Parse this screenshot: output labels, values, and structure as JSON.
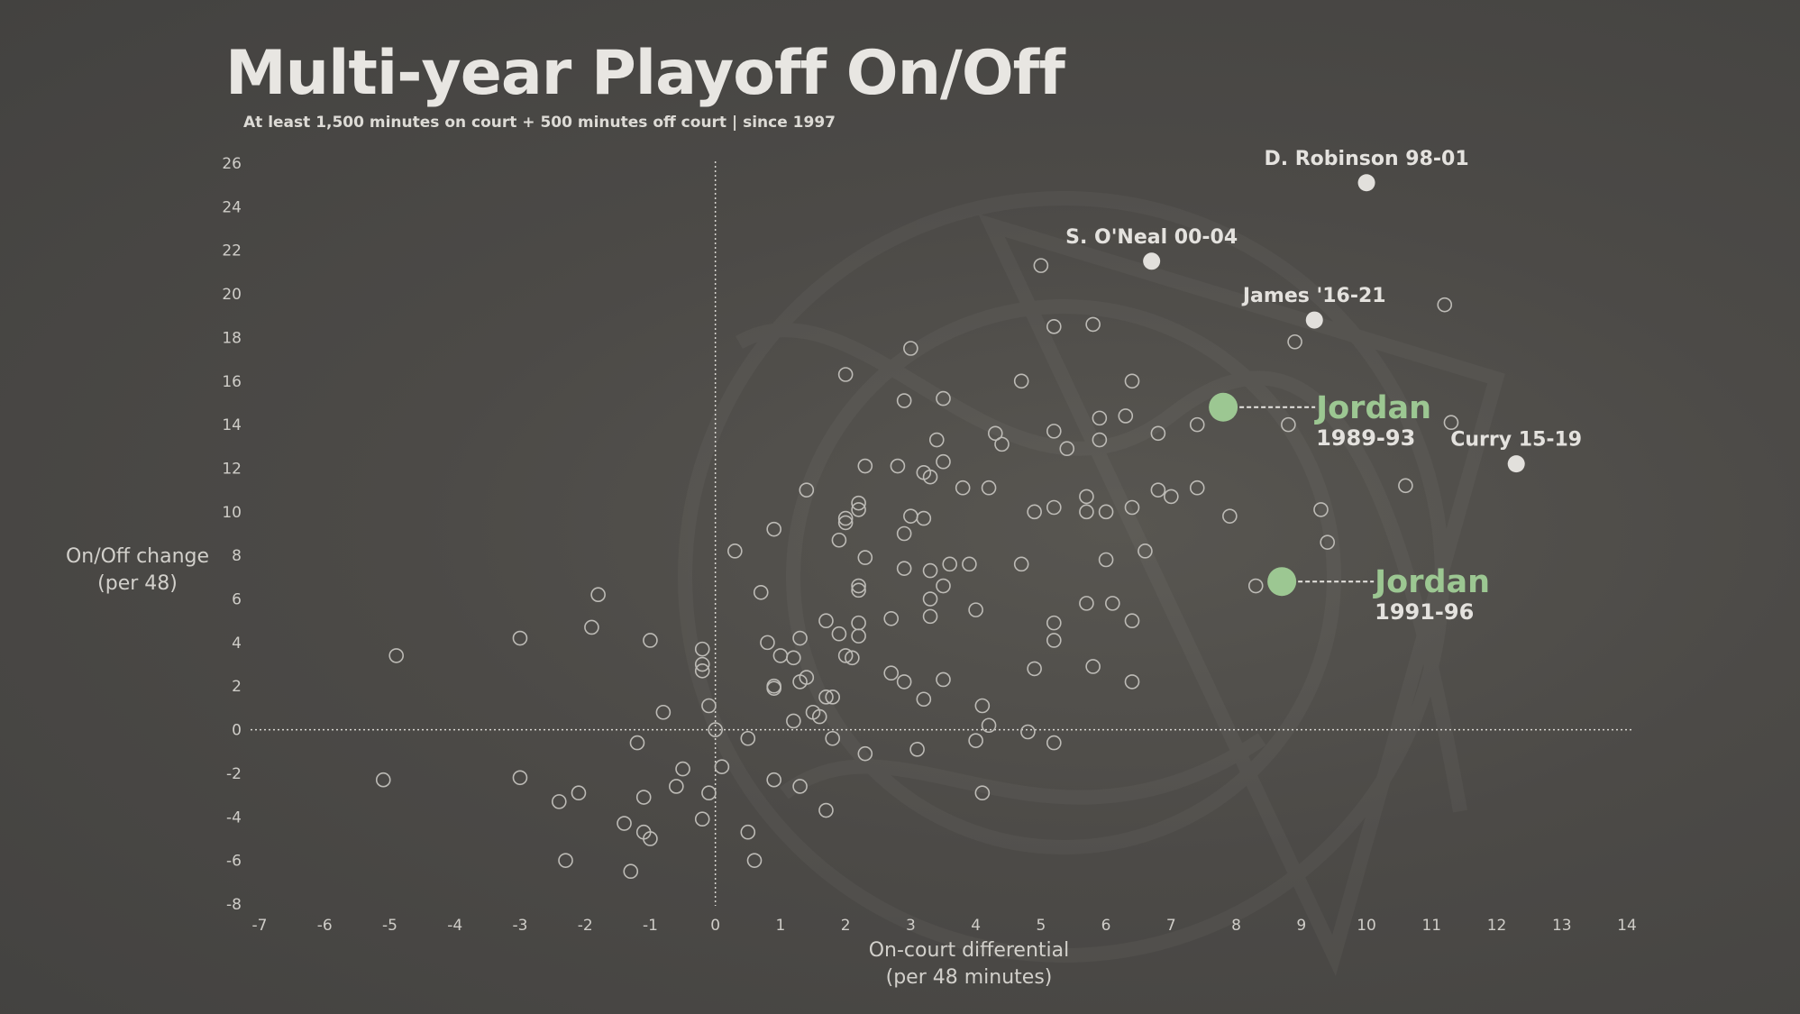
{
  "chart_data": {
    "type": "scatter",
    "title": "Multi-year Playoff On/Off",
    "subtitle": "At least 1,500 minutes on court + 500 minutes off court | since 1997",
    "xlabel": [
      "On-court differential",
      "(per 48 minutes)"
    ],
    "ylabel": [
      "On/Off change",
      "(per 48)"
    ],
    "xlim": [
      -7,
      14
    ],
    "ylim": [
      -8,
      26
    ],
    "x_ticks": [
      -7,
      -6,
      -5,
      -4,
      -3,
      -2,
      -1,
      0,
      1,
      2,
      3,
      4,
      5,
      6,
      7,
      8,
      9,
      10,
      11,
      12,
      13,
      14
    ],
    "y_ticks": [
      -8,
      -6,
      -4,
      -2,
      0,
      2,
      4,
      6,
      8,
      10,
      12,
      14,
      16,
      18,
      20,
      22,
      24,
      26
    ],
    "grid": false,
    "reference_lines": {
      "x": 0,
      "y": 0
    },
    "colors": {
      "point_outline": "#bdbbb6",
      "highlight": "#e2e0dc",
      "jordan": "#9cc792",
      "text": "#d2d0cb"
    },
    "points": [
      [
        -5.1,
        -2.3
      ],
      [
        -4.9,
        3.4
      ],
      [
        -3.0,
        4.2
      ],
      [
        -3.0,
        -2.2
      ],
      [
        -2.4,
        -3.3
      ],
      [
        -2.3,
        -6.0
      ],
      [
        -2.1,
        -2.9
      ],
      [
        -1.9,
        4.7
      ],
      [
        -1.8,
        6.2
      ],
      [
        -1.4,
        -4.3
      ],
      [
        -1.3,
        -6.5
      ],
      [
        -1.2,
        -0.6
      ],
      [
        -1.1,
        -3.1
      ],
      [
        -1.1,
        -4.7
      ],
      [
        -1.0,
        -5.0
      ],
      [
        -1.0,
        4.1
      ],
      [
        -0.8,
        0.8
      ],
      [
        -0.6,
        -2.6
      ],
      [
        -0.5,
        -1.8
      ],
      [
        -0.2,
        3.7
      ],
      [
        -0.2,
        3.0
      ],
      [
        -0.2,
        2.7
      ],
      [
        -0.2,
        -4.1
      ],
      [
        -0.1,
        1.1
      ],
      [
        -0.1,
        -2.9
      ],
      [
        0.0,
        0.0
      ],
      [
        0.1,
        -1.7
      ],
      [
        0.3,
        8.2
      ],
      [
        0.5,
        -0.4
      ],
      [
        0.5,
        -4.7
      ],
      [
        0.6,
        -6.0
      ],
      [
        0.7,
        6.3
      ],
      [
        0.8,
        4.0
      ],
      [
        0.9,
        9.2
      ],
      [
        0.9,
        2.0
      ],
      [
        0.9,
        1.9
      ],
      [
        0.9,
        -2.3
      ],
      [
        1.0,
        3.4
      ],
      [
        1.2,
        3.3
      ],
      [
        1.2,
        0.4
      ],
      [
        1.3,
        4.2
      ],
      [
        1.3,
        2.2
      ],
      [
        1.3,
        -2.6
      ],
      [
        1.4,
        2.4
      ],
      [
        1.4,
        11.0
      ],
      [
        1.5,
        0.8
      ],
      [
        1.6,
        0.6
      ],
      [
        1.7,
        5.0
      ],
      [
        1.7,
        1.5
      ],
      [
        1.7,
        -3.7
      ],
      [
        1.8,
        1.5
      ],
      [
        1.8,
        -0.4
      ],
      [
        1.9,
        8.7
      ],
      [
        1.9,
        4.4
      ],
      [
        2.0,
        16.3
      ],
      [
        2.0,
        9.7
      ],
      [
        2.0,
        9.5
      ],
      [
        2.0,
        3.4
      ],
      [
        2.1,
        3.3
      ],
      [
        2.2,
        10.4
      ],
      [
        2.2,
        10.1
      ],
      [
        2.2,
        6.6
      ],
      [
        2.2,
        6.4
      ],
      [
        2.2,
        4.9
      ],
      [
        2.2,
        4.3
      ],
      [
        2.3,
        12.1
      ],
      [
        2.3,
        7.9
      ],
      [
        2.3,
        -1.1
      ],
      [
        2.7,
        5.1
      ],
      [
        2.7,
        2.6
      ],
      [
        2.8,
        12.1
      ],
      [
        2.9,
        15.1
      ],
      [
        2.9,
        9.0
      ],
      [
        2.9,
        7.4
      ],
      [
        2.9,
        2.2
      ],
      [
        3.0,
        17.5
      ],
      [
        3.0,
        9.8
      ],
      [
        3.1,
        -0.9
      ],
      [
        3.2,
        11.8
      ],
      [
        3.2,
        9.7
      ],
      [
        3.2,
        1.4
      ],
      [
        3.3,
        11.6
      ],
      [
        3.3,
        7.3
      ],
      [
        3.3,
        6.0
      ],
      [
        3.3,
        5.2
      ],
      [
        3.4,
        13.3
      ],
      [
        3.5,
        15.2
      ],
      [
        3.5,
        12.3
      ],
      [
        3.5,
        6.6
      ],
      [
        3.5,
        2.3
      ],
      [
        3.6,
        7.6
      ],
      [
        3.8,
        11.1
      ],
      [
        3.9,
        7.6
      ],
      [
        4.0,
        5.5
      ],
      [
        4.0,
        -0.5
      ],
      [
        4.1,
        1.1
      ],
      [
        4.1,
        -2.9
      ],
      [
        4.2,
        11.1
      ],
      [
        4.2,
        0.2
      ],
      [
        4.3,
        13.6
      ],
      [
        4.4,
        13.1
      ],
      [
        4.7,
        16.0
      ],
      [
        4.7,
        7.6
      ],
      [
        4.8,
        -0.1
      ],
      [
        4.9,
        10.0
      ],
      [
        4.9,
        2.8
      ],
      [
        5.0,
        21.3
      ],
      [
        5.2,
        18.5
      ],
      [
        5.2,
        13.7
      ],
      [
        5.2,
        10.2
      ],
      [
        5.2,
        4.9
      ],
      [
        5.2,
        4.1
      ],
      [
        5.2,
        -0.6
      ],
      [
        5.4,
        12.9
      ],
      [
        5.7,
        10.7
      ],
      [
        5.7,
        10.0
      ],
      [
        5.7,
        5.8
      ],
      [
        5.8,
        18.6
      ],
      [
        5.8,
        2.9
      ],
      [
        5.9,
        14.3
      ],
      [
        5.9,
        13.3
      ],
      [
        6.0,
        10.0
      ],
      [
        6.0,
        7.8
      ],
      [
        6.1,
        5.8
      ],
      [
        6.3,
        14.4
      ],
      [
        6.4,
        16.0
      ],
      [
        6.4,
        10.2
      ],
      [
        6.4,
        5.0
      ],
      [
        6.4,
        2.2
      ],
      [
        6.6,
        8.2
      ],
      [
        6.8,
        13.6
      ],
      [
        6.8,
        11.0
      ],
      [
        7.0,
        10.7
      ],
      [
        7.4,
        14.0
      ],
      [
        7.4,
        11.1
      ],
      [
        7.9,
        9.8
      ],
      [
        8.3,
        6.6
      ],
      [
        8.8,
        14.0
      ],
      [
        8.9,
        17.8
      ],
      [
        9.3,
        10.1
      ],
      [
        9.4,
        8.6
      ],
      [
        10.6,
        11.2
      ],
      [
        11.2,
        19.5
      ],
      [
        11.3,
        14.1
      ]
    ],
    "highlights": [
      {
        "label": "D. Robinson 98-01",
        "x": 10.0,
        "y": 25.1
      },
      {
        "label": "S. O'Neal 00-04",
        "x": 6.7,
        "y": 21.5
      },
      {
        "label": "James '16-21",
        "x": 9.2,
        "y": 18.8
      },
      {
        "label": "Curry 15-19",
        "x": 12.3,
        "y": 12.2
      }
    ],
    "jordan_points": [
      {
        "name": "Jordan",
        "years": "1989-93",
        "x": 7.8,
        "y": 14.8
      },
      {
        "name": "Jordan",
        "years": "1991-96",
        "x": 8.7,
        "y": 6.8
      }
    ]
  }
}
